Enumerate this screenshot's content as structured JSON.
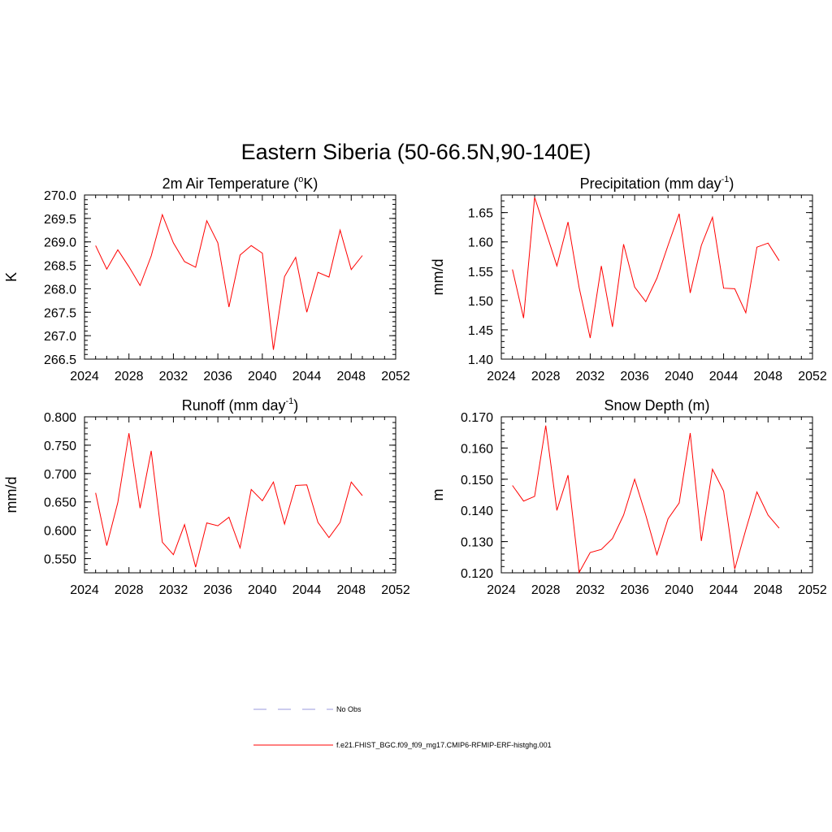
{
  "figure": {
    "title": "Eastern Siberia (50-66.5N,90-140E)"
  },
  "legend": {
    "entries": [
      {
        "label": "No Obs",
        "color": "#9999dd",
        "style": "dashed"
      },
      {
        "label": "f.e21.FHIST_BGC.f09_f09_mg17.CMIP6-RFMIP-ERF-histghg.001",
        "color": "#ff0000",
        "style": "solid"
      }
    ]
  },
  "chart_data": [
    {
      "type": "line",
      "title": "2m Air Temperature (",
      "title_sup": "o",
      "title_after": "K)",
      "ylabel": "K",
      "xlabel": "",
      "xlim": [
        2024,
        2052
      ],
      "ylim": [
        266.5,
        270.0
      ],
      "xticks": [
        2024,
        2028,
        2032,
        2036,
        2040,
        2044,
        2048,
        2052
      ],
      "yticks": [
        266.5,
        267.0,
        267.5,
        268.0,
        268.5,
        269.0,
        269.5,
        270.0
      ],
      "ytick_labels": [
        "266.5",
        "267.0",
        "267.5",
        "268.0",
        "268.5",
        "269.0",
        "269.5",
        "270.0"
      ],
      "grid": false,
      "series": [
        {
          "color": "#ff0000",
          "x": [
            2025,
            2026,
            2027,
            2028,
            2029,
            2030,
            2031,
            2032,
            2033,
            2034,
            2035,
            2036,
            2037,
            2038,
            2039,
            2040,
            2041,
            2042,
            2043,
            2044,
            2045,
            2046,
            2047,
            2048,
            2049
          ],
          "y": [
            268.92,
            268.42,
            268.83,
            268.47,
            268.07,
            268.7,
            269.58,
            268.98,
            268.58,
            268.46,
            269.45,
            268.98,
            267.61,
            268.72,
            268.92,
            268.76,
            266.7,
            268.26,
            268.67,
            267.5,
            268.35,
            268.25,
            269.25,
            268.41,
            268.71
          ]
        }
      ]
    },
    {
      "type": "line",
      "title": "Precipitation (mm day",
      "title_sup": "-1",
      "title_after": ")",
      "ylabel": "mm/d",
      "xlabel": "",
      "xlim": [
        2024,
        2052
      ],
      "ylim": [
        1.4,
        1.68
      ],
      "xticks": [
        2024,
        2028,
        2032,
        2036,
        2040,
        2044,
        2048,
        2052
      ],
      "yticks": [
        1.4,
        1.45,
        1.5,
        1.55,
        1.6,
        1.65
      ],
      "ytick_labels": [
        "1.40",
        "1.45",
        "1.50",
        "1.55",
        "1.60",
        "1.65"
      ],
      "grid": false,
      "series": [
        {
          "color": "#ff0000",
          "x": [
            2025,
            2026,
            2027,
            2028,
            2029,
            2030,
            2031,
            2032,
            2033,
            2034,
            2035,
            2036,
            2037,
            2038,
            2039,
            2040,
            2041,
            2042,
            2043,
            2044,
            2045,
            2046,
            2047,
            2048,
            2049
          ],
          "y": [
            1.553,
            1.47,
            1.676,
            1.618,
            1.559,
            1.634,
            1.522,
            1.436,
            1.559,
            1.455,
            1.596,
            1.523,
            1.498,
            1.538,
            1.594,
            1.648,
            1.513,
            1.594,
            1.642,
            1.521,
            1.52,
            1.479,
            1.591,
            1.598,
            1.568
          ]
        }
      ]
    },
    {
      "type": "line",
      "title": "Runoff (mm day",
      "title_sup": "-1",
      "title_after": ")",
      "ylabel": "mm/d",
      "xlabel": "",
      "xlim": [
        2024,
        2052
      ],
      "ylim": [
        0.525,
        0.8
      ],
      "xticks": [
        2024,
        2028,
        2032,
        2036,
        2040,
        2044,
        2048,
        2052
      ],
      "yticks": [
        0.55,
        0.6,
        0.65,
        0.7,
        0.75,
        0.8
      ],
      "ytick_labels": [
        "0.550",
        "0.600",
        "0.650",
        "0.700",
        "0.750",
        "0.800"
      ],
      "grid": false,
      "series": [
        {
          "color": "#ff0000",
          "x": [
            2025,
            2026,
            2027,
            2028,
            2029,
            2030,
            2031,
            2032,
            2033,
            2034,
            2035,
            2036,
            2037,
            2038,
            2039,
            2040,
            2041,
            2042,
            2043,
            2044,
            2045,
            2046,
            2047,
            2048,
            2049
          ],
          "y": [
            0.666,
            0.573,
            0.649,
            0.771,
            0.639,
            0.74,
            0.579,
            0.557,
            0.61,
            0.535,
            0.613,
            0.608,
            0.623,
            0.569,
            0.672,
            0.652,
            0.685,
            0.611,
            0.679,
            0.68,
            0.614,
            0.587,
            0.614,
            0.685,
            0.661
          ]
        }
      ]
    },
    {
      "type": "line",
      "title": "Snow Depth (m)",
      "title_sup": "",
      "title_after": "",
      "ylabel": "m",
      "xlabel": "",
      "xlim": [
        2024,
        2052
      ],
      "ylim": [
        0.12,
        0.17
      ],
      "xticks": [
        2024,
        2028,
        2032,
        2036,
        2040,
        2044,
        2048,
        2052
      ],
      "yticks": [
        0.12,
        0.13,
        0.14,
        0.15,
        0.16,
        0.17
      ],
      "ytick_labels": [
        "0.120",
        "0.130",
        "0.140",
        "0.150",
        "0.160",
        "0.170"
      ],
      "grid": false,
      "series": [
        {
          "color": "#ff0000",
          "x": [
            2025,
            2026,
            2027,
            2028,
            2029,
            2030,
            2031,
            2032,
            2033,
            2034,
            2035,
            2036,
            2037,
            2038,
            2039,
            2040,
            2041,
            2042,
            2043,
            2044,
            2045,
            2046,
            2047,
            2048,
            2049
          ],
          "y": [
            0.148,
            0.143,
            0.1445,
            0.1672,
            0.14,
            0.1513,
            0.1201,
            0.1265,
            0.1275,
            0.131,
            0.1385,
            0.15,
            0.1385,
            0.1258,
            0.1373,
            0.1424,
            0.1648,
            0.1302,
            0.1532,
            0.1462,
            0.1212,
            0.1338,
            0.1459,
            0.1385,
            0.1343
          ]
        }
      ]
    }
  ]
}
